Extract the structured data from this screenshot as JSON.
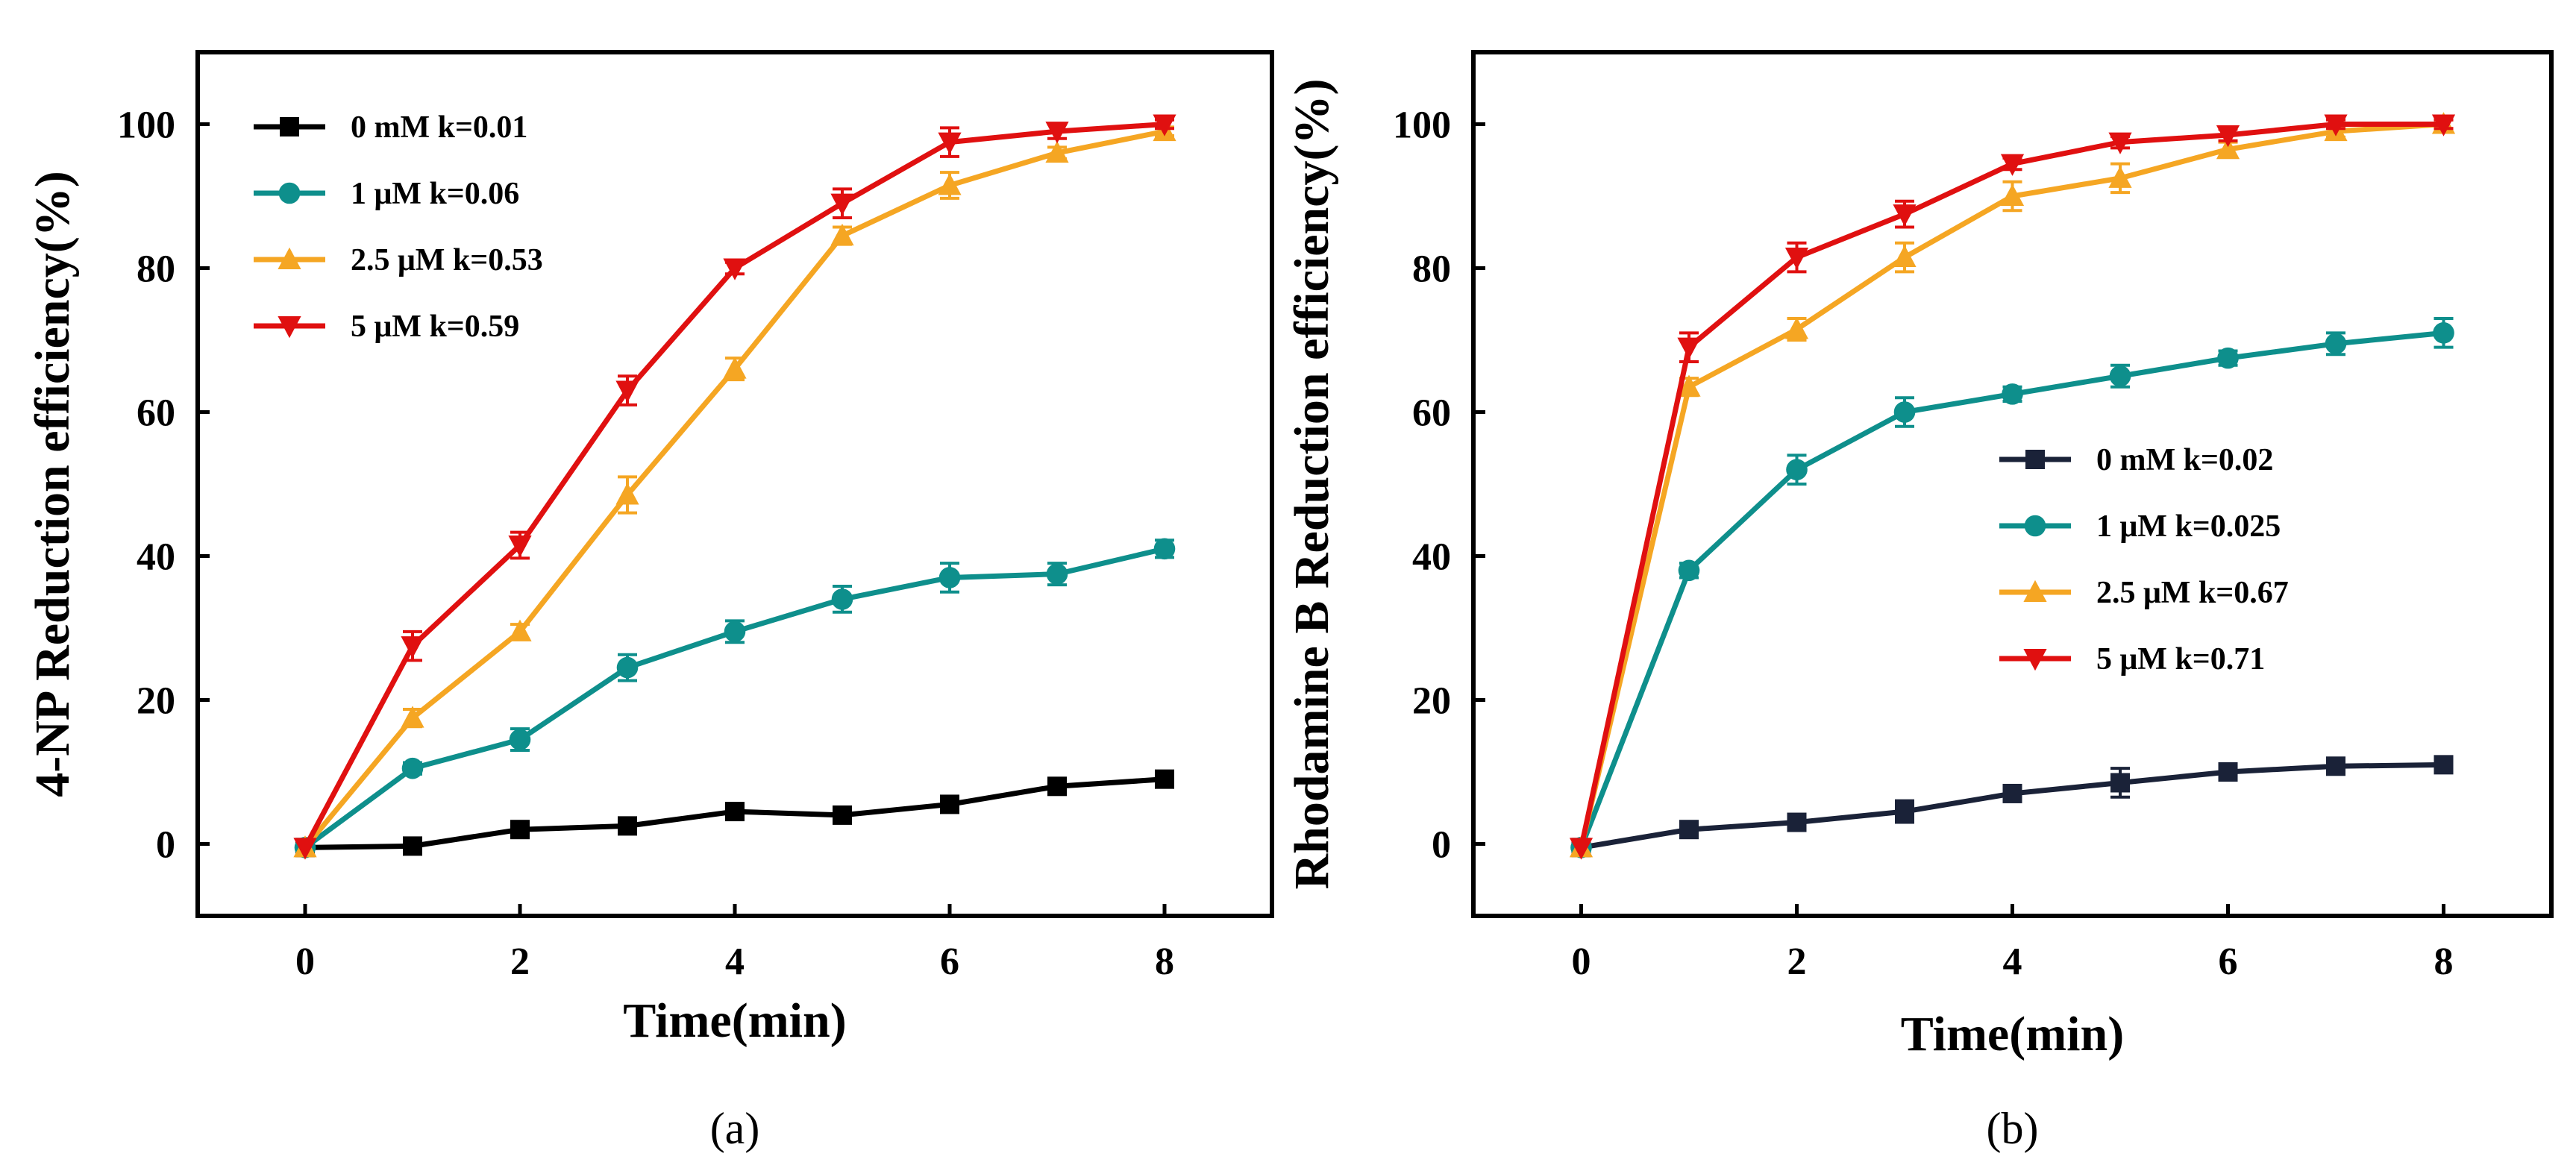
{
  "chart_data": [
    {
      "type": "line",
      "panel_label": "(a)",
      "xlabel": "Time(min)",
      "ylabel": "4-NP Reduction efficiency(%)",
      "xlim": [
        -1,
        9
      ],
      "ylim": [
        -10,
        110
      ],
      "xticks": [
        0,
        2,
        4,
        6,
        8
      ],
      "yticks": [
        0,
        20,
        40,
        60,
        80,
        100
      ],
      "legend_position": "top-left",
      "x": [
        0,
        1,
        2,
        3,
        4,
        5,
        6,
        7,
        8
      ],
      "series": [
        {
          "name": "0 mM k=0.01",
          "color": "#000000",
          "marker": "square",
          "values": [
            -0.5,
            -0.3,
            2,
            2.5,
            4.5,
            4,
            5.5,
            8,
            9
          ],
          "errors": [
            0,
            0,
            0.6,
            0.6,
            0.6,
            0.6,
            0.8,
            0.8,
            0.8
          ]
        },
        {
          "name": "1 μM k=0.06",
          "color": "#0E8F8C",
          "marker": "circle",
          "values": [
            -0.5,
            10.5,
            14.5,
            24.5,
            29.5,
            34,
            37,
            37.5,
            41
          ],
          "errors": [
            0,
            0.8,
            1.5,
            1.8,
            1.5,
            1.8,
            2.0,
            1.5,
            1.2
          ]
        },
        {
          "name": "2.5 μM k=0.53",
          "color": "#F5A623",
          "marker": "triangle-up",
          "values": [
            -0.5,
            17.5,
            29.5,
            48.5,
            66,
            84.5,
            91.5,
            96,
            99
          ],
          "errors": [
            0,
            1.2,
            1.0,
            2.5,
            1.5,
            1.2,
            1.8,
            0.8,
            0.6
          ]
        },
        {
          "name": "5 μM k=0.59",
          "color": "#E01010",
          "marker": "triangle-down",
          "values": [
            -0.5,
            27.5,
            41.5,
            63,
            80,
            89,
            97.5,
            99,
            100
          ],
          "errors": [
            0,
            2.0,
            1.8,
            2.0,
            0.8,
            2.0,
            2.0,
            1.0,
            0.6
          ]
        }
      ]
    },
    {
      "type": "line",
      "panel_label": "(b)",
      "xlabel": "Time(min)",
      "ylabel": "Rhodamine B Reduction efficiency(%)",
      "xlim": [
        -1,
        9
      ],
      "ylim": [
        -10,
        110
      ],
      "xticks": [
        0,
        2,
        4,
        6,
        8
      ],
      "yticks": [
        0,
        20,
        40,
        60,
        80,
        100
      ],
      "legend_position": "middle-right",
      "x": [
        0,
        1,
        2,
        3,
        4,
        5,
        6,
        7,
        8
      ],
      "series": [
        {
          "name": "0 mM k=0.02",
          "color": "#1A2238",
          "marker": "square",
          "values": [
            -0.5,
            2,
            3,
            4.5,
            7,
            8.5,
            10,
            10.8,
            11
          ],
          "errors": [
            0,
            0.8,
            0.8,
            1.5,
            0.8,
            2.0,
            1.0,
            1.0,
            0.8
          ]
        },
        {
          "name": "1 μM k=0.025",
          "color": "#0E8F8C",
          "marker": "circle",
          "values": [
            -0.5,
            38,
            52,
            60,
            62.5,
            65,
            67.5,
            69.5,
            71
          ],
          "errors": [
            0,
            1.0,
            2.0,
            2.0,
            1.0,
            1.5,
            1.0,
            1.5,
            2.0
          ]
        },
        {
          "name": "2.5 μM k=0.67",
          "color": "#F5A623",
          "marker": "triangle-up",
          "values": [
            -0.5,
            63.5,
            71.5,
            81.5,
            90,
            92.5,
            96.5,
            99,
            100
          ],
          "errors": [
            0,
            1.2,
            1.5,
            2.0,
            2.0,
            2.0,
            1.0,
            0.8,
            0.6
          ]
        },
        {
          "name": "5 μM k=0.71",
          "color": "#E01010",
          "marker": "triangle-down",
          "values": [
            -0.5,
            69,
            81.5,
            87.5,
            94.5,
            97.5,
            98.5,
            100,
            100
          ],
          "errors": [
            0,
            2.0,
            2.0,
            1.8,
            0.8,
            0.8,
            0.8,
            0.6,
            0.6
          ]
        }
      ]
    }
  ]
}
